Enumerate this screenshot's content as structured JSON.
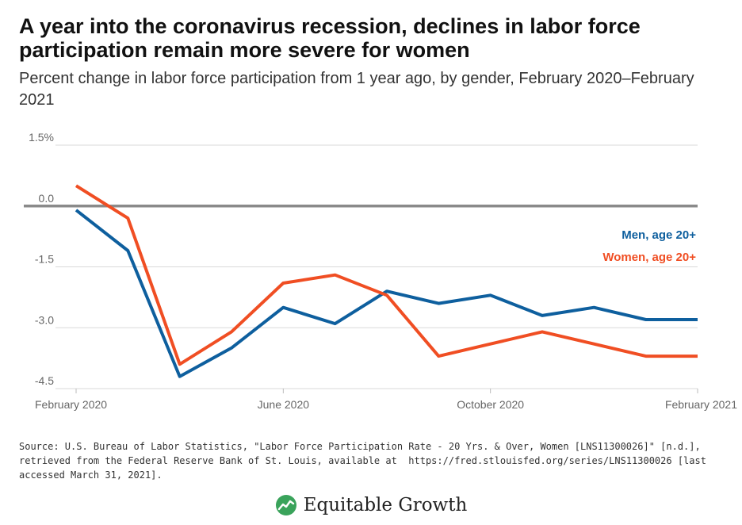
{
  "title": "A year into the coronavirus recession, declines in labor force participation remain more severe for women",
  "subtitle": "Percent change in labor force participation from 1 year ago, by gender, February 2020–February 2021",
  "source": "Source: U.S. Bureau of Labor Statistics, \"Labor Force Participation Rate - 20 Yrs. & Over, Women [LNS11300026]\" [n.d.], retrieved from the Federal Reserve Bank of St. Louis, available at  https://fred.stlouisfed.org/series/LNS11300026 [last accessed March 31, 2021].",
  "brand": {
    "name": "Equitable Growth",
    "logo_icon": "growth-leaf-icon",
    "logo_color": "#3aa35b"
  },
  "colors": {
    "men": "#0e5f9e",
    "women": "#f04e23",
    "zero_line": "#8a8a8a",
    "grid": "#d9d9d9"
  },
  "chart_data": {
    "type": "line",
    "x": [
      "2020-02",
      "2020-03",
      "2020-04",
      "2020-05",
      "2020-06",
      "2020-07",
      "2020-08",
      "2020-09",
      "2020-10",
      "2020-11",
      "2020-12",
      "2021-01",
      "2021-02"
    ],
    "x_ticks": [
      {
        "x": "2020-02",
        "label": "February 2020"
      },
      {
        "x": "2020-06",
        "label": "June 2020"
      },
      {
        "x": "2020-10",
        "label": "October 2020"
      },
      {
        "x": "2021-02",
        "label": "February 2021"
      }
    ],
    "y_ticks": [
      "1.5%",
      "0.0",
      "-1.5",
      "-3.0",
      "-4.5"
    ],
    "y_tick_values": [
      1.5,
      0.0,
      -1.5,
      -3.0,
      -4.5
    ],
    "ylim": [
      -4.5,
      1.5
    ],
    "grid": true,
    "legend_position": "right",
    "series": [
      {
        "name": "Men, age 20+",
        "color": "#0e5f9e",
        "values": [
          -0.1,
          -1.1,
          -4.2,
          -3.5,
          -2.5,
          -2.9,
          -2.1,
          -2.4,
          -2.2,
          -2.7,
          -2.5,
          -2.8,
          -2.8
        ]
      },
      {
        "name": "Women, age 20+",
        "color": "#f04e23",
        "values": [
          0.5,
          -0.3,
          -3.9,
          -3.1,
          -1.9,
          -1.7,
          -2.2,
          -3.7,
          -3.4,
          -3.1,
          -3.4,
          -3.7,
          -3.7
        ]
      }
    ]
  }
}
